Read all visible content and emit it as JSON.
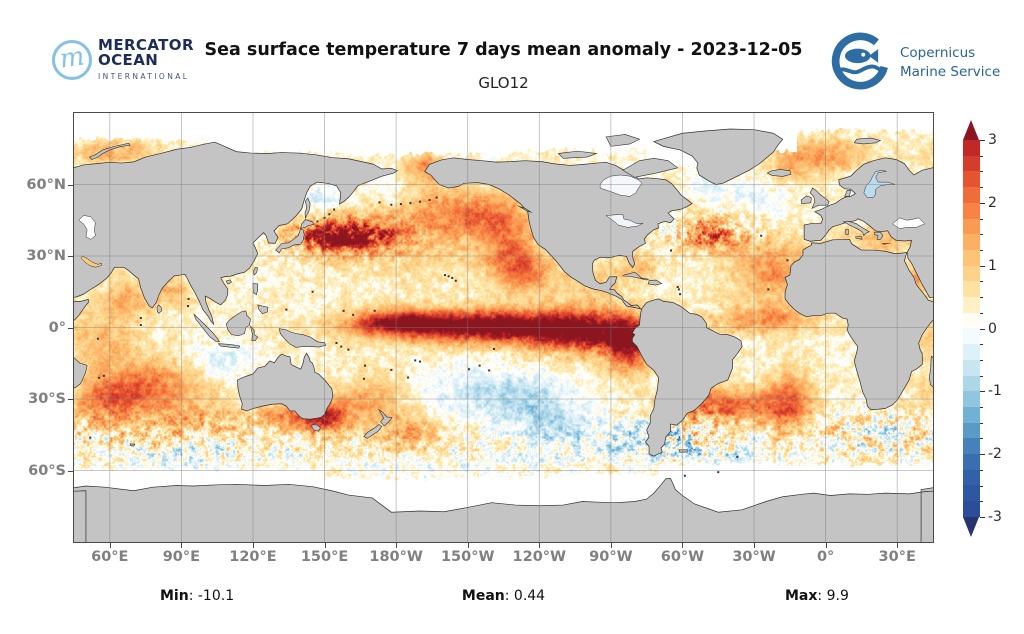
{
  "header": {
    "mercator_logo": {
      "monogram": "m",
      "line1": "MERCATOR",
      "line2": "OCEAN",
      "line3": "INTERNATIONAL"
    },
    "title": "Sea surface temperature 7 days mean anomaly - 2023-12-05",
    "subtitle": "GLO12",
    "copernicus_logo": {
      "line1": "Copernicus",
      "line2": "Marine Service"
    }
  },
  "stats": {
    "separator": ": ",
    "min_label": "Min",
    "min_value": "-10.1",
    "mean_label": "Mean",
    "mean_value": "0.44",
    "max_label": "Max",
    "max_value": "9.9"
  },
  "map": {
    "lon_start": 45,
    "x_ticks": [
      {
        "label": "60°E",
        "lon": 60
      },
      {
        "label": "90°E",
        "lon": 90
      },
      {
        "label": "120°E",
        "lon": 120
      },
      {
        "label": "150°E",
        "lon": 150
      },
      {
        "label": "180°W",
        "lon": 180
      },
      {
        "label": "150°W",
        "lon": 210
      },
      {
        "label": "120°W",
        "lon": 240
      },
      {
        "label": "90°W",
        "lon": 270
      },
      {
        "label": "60°W",
        "lon": 300
      },
      {
        "label": "30°W",
        "lon": 330
      },
      {
        "label": "0°",
        "lon": 360
      },
      {
        "label": "30°E",
        "lon": 390
      }
    ],
    "y_ticks": [
      {
        "label": "60°N",
        "lat": 60
      },
      {
        "label": "30°N",
        "lat": 30
      },
      {
        "label": "0°",
        "lat": 0
      },
      {
        "label": "30°S",
        "lat": -30
      },
      {
        "label": "60°S",
        "lat": -60
      }
    ],
    "land_color": "#c4c4c4",
    "coast_color": "#2f2f2f",
    "grid_color": "rgba(125,125,125,0.55)",
    "ice_color": "#ffffff"
  },
  "colorbar": {
    "min": -3,
    "max": 3,
    "step": 0.25,
    "major_ticks": [
      {
        "label": "3",
        "v": 3
      },
      {
        "label": "2",
        "v": 2
      },
      {
        "label": "1",
        "v": 1
      },
      {
        "label": "0",
        "v": 0
      },
      {
        "label": "-1",
        "v": -1
      },
      {
        "label": "-2",
        "v": -2
      },
      {
        "label": "-3",
        "v": -3
      }
    ],
    "stops": [
      [
        -3.4,
        "#27356f"
      ],
      [
        -3,
        "#2b4a96"
      ],
      [
        -2.5,
        "#2f5ba5"
      ],
      [
        -2,
        "#3d74b5"
      ],
      [
        -1.5,
        "#62a7cd"
      ],
      [
        -1,
        "#9fd0e5"
      ],
      [
        -0.5,
        "#d5ecf5"
      ],
      [
        -0.15,
        "#f2fafc"
      ],
      [
        0,
        "#ffffff"
      ],
      [
        0.15,
        "#fffef4"
      ],
      [
        0.5,
        "#fee9ad"
      ],
      [
        1,
        "#fdcc80"
      ],
      [
        1.5,
        "#fba65a"
      ],
      [
        2,
        "#f5793f"
      ],
      [
        2.5,
        "#de472d"
      ],
      [
        3,
        "#b42025"
      ],
      [
        3.4,
        "#8c1620"
      ]
    ],
    "over": "#8c1620",
    "under": "#27356f"
  },
  "chart_data": {
    "type": "heatmap",
    "title": "Sea surface temperature 7 days mean anomaly - 2023-12-05",
    "model": "GLO12",
    "date": "2023-12-05",
    "colorbar_range": [
      -3,
      3
    ],
    "colorbar_ticks": [
      3,
      2,
      1,
      0,
      -1,
      -2,
      -3
    ],
    "lon_range": [
      45,
      405
    ],
    "lat_range": [
      -90,
      90
    ],
    "stats": {
      "min": -10.1,
      "mean": 0.44,
      "max": 9.9
    },
    "base_anomaly": 0.3,
    "feature_format": "lon,lat,sigma_lon,sigma_lat,amplitude",
    "anomaly_features": [
      [
        195,
        1,
        25,
        4.5,
        2.4
      ],
      [
        232,
        0,
        22,
        5,
        2.6
      ],
      [
        262,
        -2,
        16,
        6.5,
        2.5
      ],
      [
        278,
        -8,
        7,
        8,
        2.2
      ],
      [
        180,
        2,
        12,
        3.5,
        1.5
      ],
      [
        152,
        38,
        10,
        4.5,
        2.4
      ],
      [
        168,
        39,
        12,
        5,
        1.7
      ],
      [
        205,
        50,
        20,
        7,
        1.1
      ],
      [
        190,
        35,
        25,
        10,
        0.7
      ],
      [
        228,
        31,
        8,
        9,
        1.3
      ],
      [
        235,
        23,
        8,
        6,
        1.2
      ],
      [
        192,
        67,
        5,
        4,
        1.6
      ],
      [
        220,
        45,
        12,
        6,
        0.8
      ],
      [
        75,
        -25,
        16,
        8,
        1.7
      ],
      [
        58,
        -31,
        9,
        6,
        1.2
      ],
      [
        68,
        12,
        9,
        6,
        1.0
      ],
      [
        87,
        16,
        6,
        4,
        0.9
      ],
      [
        55,
        -5,
        12,
        8,
        0.9
      ],
      [
        95,
        -40,
        20,
        6,
        0.8
      ],
      [
        149,
        -38,
        6,
        4.5,
        2.4
      ],
      [
        134,
        -37,
        8,
        4,
        1.4
      ],
      [
        160,
        -34,
        10,
        7,
        0.8
      ],
      [
        185,
        -44,
        9,
        6,
        1.1
      ],
      [
        172,
        -30,
        10,
        7,
        0.7
      ],
      [
        318,
        -33,
        16,
        5,
        1.9
      ],
      [
        345,
        -31,
        7,
        9,
        1.8
      ],
      [
        305,
        -24,
        5,
        6,
        1.1
      ],
      [
        335,
        3,
        16,
        4,
        1.4
      ],
      [
        338,
        24,
        13,
        9,
        1.4
      ],
      [
        312,
        38,
        9,
        5,
        1.3
      ],
      [
        282,
        26,
        6,
        3.5,
        0.9
      ],
      [
        262,
        18,
        12,
        6,
        0.7
      ],
      [
        25,
        37,
        11,
        3.5,
        1.1
      ],
      [
        38,
        20,
        3,
        7,
        1.2
      ],
      [
        358,
        72,
        13,
        5,
        1.3
      ],
      [
        62,
        74,
        12,
        4,
        1.0
      ],
      [
        345,
        66,
        6,
        4,
        0.7
      ],
      [
        288,
        -45,
        10,
        5,
        -1.0
      ],
      [
        222,
        -27,
        20,
        7,
        -1.0
      ],
      [
        243,
        -38,
        14,
        7,
        -0.9
      ],
      [
        258,
        -50,
        20,
        6,
        -0.5
      ],
      [
        106,
        -14,
        9,
        5,
        -0.8
      ],
      [
        150,
        55,
        7,
        4,
        -0.7
      ],
      [
        330,
        55,
        9,
        5,
        -0.5
      ],
      [
        178,
        55,
        8,
        5,
        -0.4
      ],
      [
        310,
        60,
        6,
        4,
        -0.5
      ],
      [
        95,
        -55,
        25,
        5,
        -0.5
      ],
      [
        200,
        -58,
        30,
        5,
        -0.4
      ],
      [
        320,
        -55,
        20,
        5,
        -0.5
      ]
    ],
    "eddy_regions": [
      [
        158,
        38,
        20,
        6,
        1.2
      ],
      [
        310,
        40,
        14,
        5,
        1.4
      ],
      [
        300,
        -45,
        16,
        7,
        1.2
      ],
      [
        25,
        -42,
        18,
        6,
        1.0
      ],
      [
        95,
        -45,
        30,
        7,
        0.5
      ],
      [
        265,
        -5,
        35,
        8,
        0.3
      ]
    ],
    "arctic_ice_edge": [
      [
        45,
        100,
        79
      ],
      [
        100,
        160,
        73
      ],
      [
        160,
        235,
        72.5
      ],
      [
        235,
        285,
        74.5
      ],
      [
        285,
        332,
        68
      ],
      [
        332,
        348,
        74
      ],
      [
        348,
        405,
        82.5
      ]
    ],
    "antarctic_ice_edge": [
      [
        45,
        150,
        -59.5
      ],
      [
        150,
        250,
        -63
      ],
      [
        250,
        290,
        -61.5
      ],
      [
        290,
        340,
        -57
      ],
      [
        340,
        405,
        -57.5
      ]
    ]
  }
}
